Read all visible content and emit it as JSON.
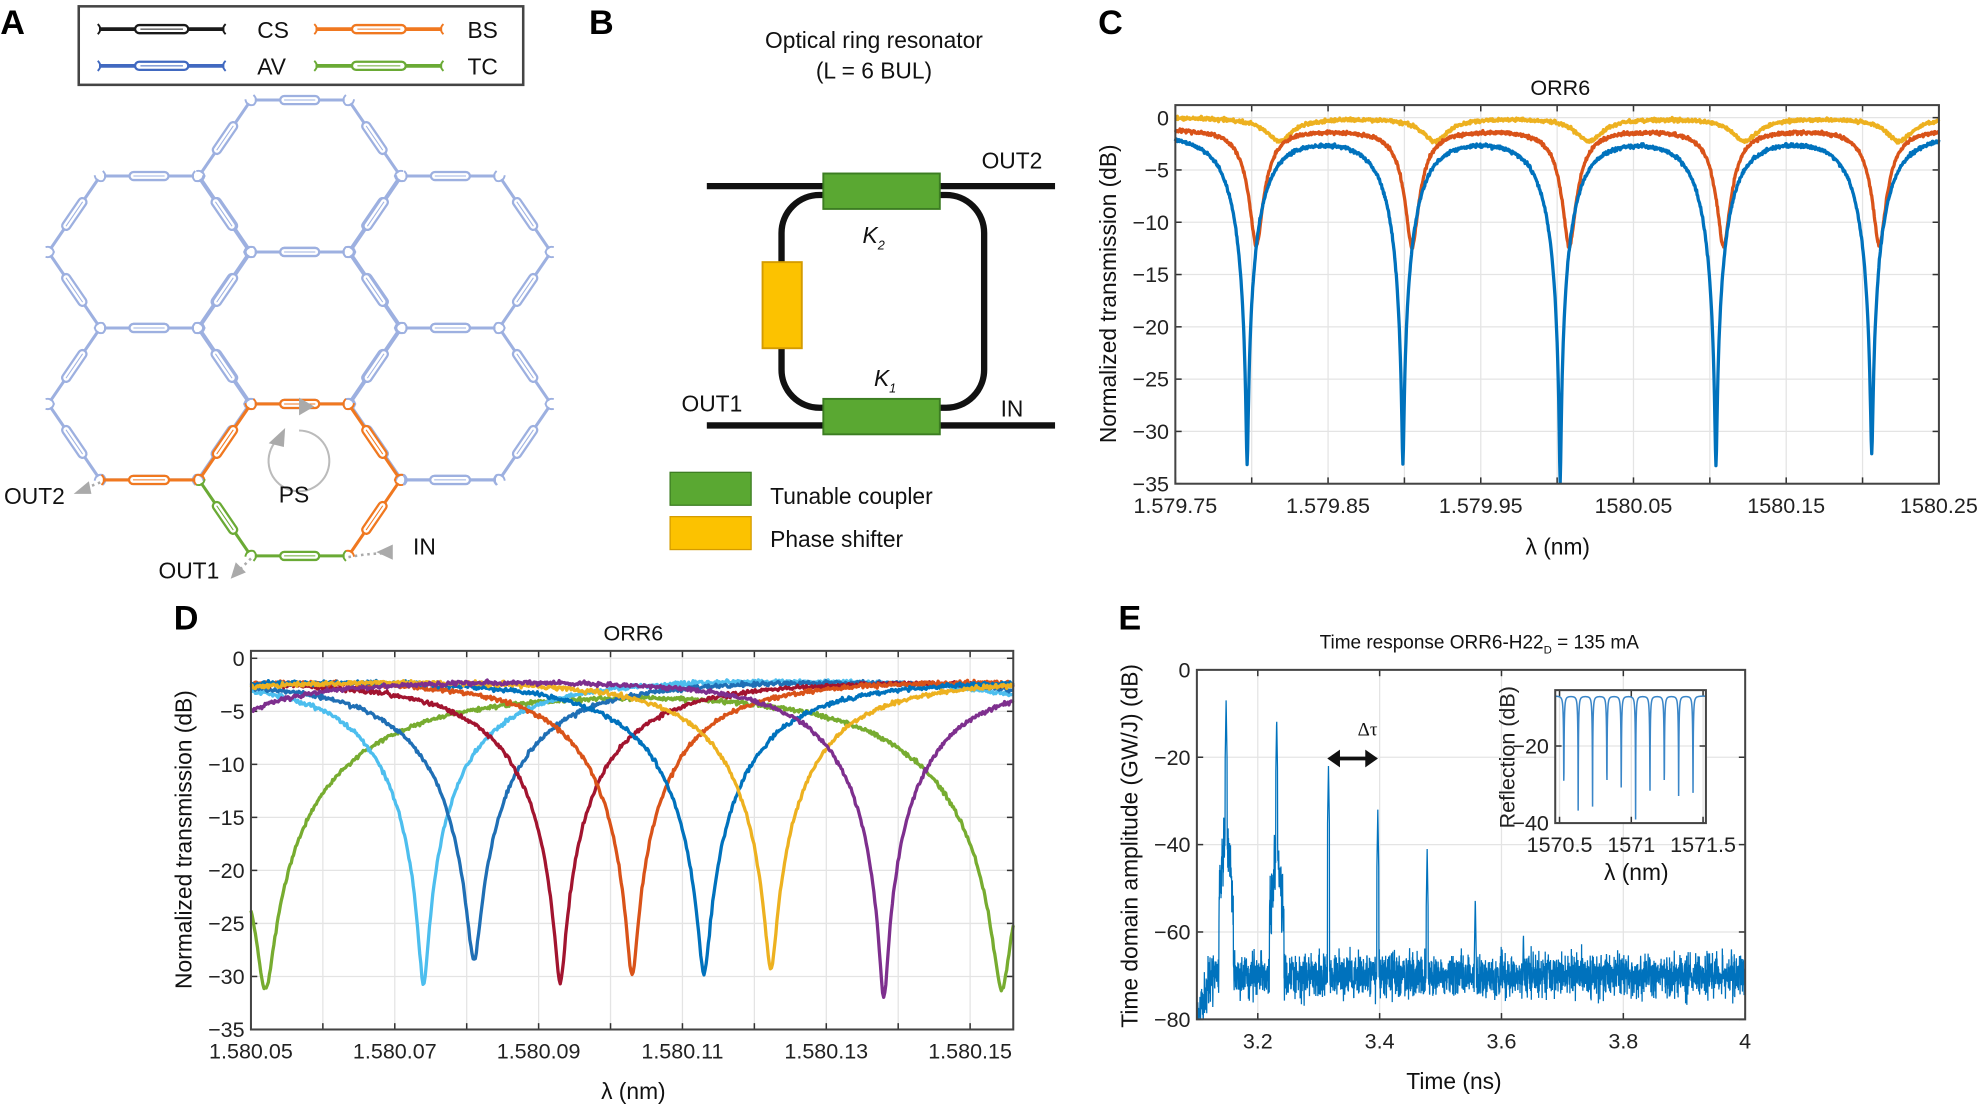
{
  "panel_labels": {
    "a": "A",
    "b": "B",
    "c": "C",
    "d": "D",
    "e": "E"
  },
  "panel_a": {
    "legend": [
      {
        "label": "CS",
        "color": "#1a1a1a"
      },
      {
        "label": "BS",
        "color": "#f07820"
      },
      {
        "label": "AV",
        "color": "#4169c0"
      },
      {
        "label": "TC",
        "color": "#6aaa35"
      }
    ],
    "lattice_color": "#9db0e0",
    "ports": {
      "out2": "OUT2",
      "out1": "OUT1",
      "in": "IN"
    },
    "ps_label": "PS"
  },
  "panel_b": {
    "title_line1": "Optical ring resonator",
    "title_line2": "(L = 6 BUL)",
    "k2": "K",
    "k2_sub": "2",
    "k1": "K",
    "k1_sub": "1",
    "out2": "OUT2",
    "out1": "OUT1",
    "in": "IN",
    "legend": [
      {
        "label": "Tunable coupler",
        "color": "#5aa832"
      },
      {
        "label": "Phase shifter",
        "color": "#fcc200"
      }
    ]
  },
  "chart_data": [
    {
      "type": "line",
      "title": "ORR6",
      "xlabel": "λ (nm)",
      "ylabel": "Normalized transmission (dB)",
      "xlim": [
        1579.75,
        1580.25
      ],
      "ylim": [
        -35,
        1.2
      ],
      "xtick_values": [
        1579.75,
        1579.85,
        1579.95,
        1580.05,
        1580.15,
        1580.25
      ],
      "xtick_labels": [
        "1.579.75",
        "1.579.85",
        "1.579.95",
        "1580.05",
        "1580.15",
        "1580.25"
      ],
      "ytick_values": [
        0,
        -5,
        -10,
        -15,
        -20,
        -25,
        -30,
        -35
      ],
      "ytick_labels": [
        "0",
        "−5",
        "−10",
        "−15",
        "−20",
        "−25",
        "−30",
        "−35"
      ],
      "grid": true,
      "series": [
        {
          "color": "#edb120",
          "baseline_db": 0,
          "half_width_nm": 0.012,
          "dips": [
            {
              "lambda": 1579.818,
              "depth_db": -2.2
            },
            {
              "lambda": 1579.92,
              "depth_db": -2.2
            },
            {
              "lambda": 1580.021,
              "depth_db": -2.2
            },
            {
              "lambda": 1580.123,
              "depth_db": -2.2
            },
            {
              "lambda": 1580.224,
              "depth_db": -2.2
            }
          ]
        },
        {
          "color": "#d95319",
          "baseline_db": -1.0,
          "half_width_nm": 0.0115,
          "dips": [
            {
              "lambda": 1579.803,
              "depth_db": -12.2
            },
            {
              "lambda": 1579.905,
              "depth_db": -12.3
            },
            {
              "lambda": 1580.008,
              "depth_db": -12.2
            },
            {
              "lambda": 1580.109,
              "depth_db": -12.2
            },
            {
              "lambda": 1580.211,
              "depth_db": -12.1
            }
          ]
        },
        {
          "color": "#0072bd",
          "baseline_db": -1.3,
          "half_width_nm": 0.02,
          "dips": [
            {
              "lambda": 1579.797,
              "depth_db": -33
            },
            {
              "lambda": 1579.899,
              "depth_db": -32.8
            },
            {
              "lambda": 1580.002,
              "depth_db": -34.3
            },
            {
              "lambda": 1580.104,
              "depth_db": -32.9
            },
            {
              "lambda": 1580.206,
              "depth_db": -31.9
            }
          ]
        }
      ]
    },
    {
      "type": "line",
      "title": "ORR6",
      "xlabel": "λ (nm)",
      "ylabel": "Normalized transmission (dB)",
      "xlim": [
        1580.05,
        1580.156
      ],
      "ylim": [
        -35,
        0.7
      ],
      "xtick_values": [
        1580.05,
        1580.07,
        1580.09,
        1580.11,
        1580.13,
        1580.15
      ],
      "xtick_labels": [
        "1.580.05",
        "1.580.07",
        "1.580.09",
        "1.580.11",
        "1.580.13",
        "1.580.15"
      ],
      "ytick_values": [
        0,
        -5,
        -10,
        -15,
        -20,
        -25,
        -30,
        -35
      ],
      "ytick_labels": [
        "0",
        "−5",
        "−10",
        "−15",
        "−20",
        "−25",
        "−30",
        "−35"
      ],
      "grid": true,
      "fsr_nm": 0.1024,
      "series": [
        {
          "color": "#77ac30",
          "baseline_db": -1.5,
          "half_width_nm": 0.026,
          "dips": [
            {
              "lambda": 1580.052,
              "depth_db": -30.5
            }
          ]
        },
        {
          "color": "#4dbeee",
          "baseline_db": -1.4,
          "half_width_nm": 0.015,
          "dips": [
            {
              "lambda": 1580.074,
              "depth_db": -30.5
            }
          ]
        },
        {
          "color": "#1f6fb5",
          "baseline_db": -1.4,
          "half_width_nm": 0.016,
          "dips": [
            {
              "lambda": 1580.081,
              "depth_db": -28.2
            }
          ]
        },
        {
          "color": "#a2142f",
          "baseline_db": -1.5,
          "half_width_nm": 0.016,
          "dips": [
            {
              "lambda": 1580.093,
              "depth_db": -30.4
            }
          ]
        },
        {
          "color": "#d95319",
          "baseline_db": -1.5,
          "half_width_nm": 0.015,
          "dips": [
            {
              "lambda": 1580.103,
              "depth_db": -29.6
            }
          ]
        },
        {
          "color": "#0072bd",
          "baseline_db": -1.4,
          "half_width_nm": 0.016,
          "dips": [
            {
              "lambda": 1580.113,
              "depth_db": -29.4
            }
          ]
        },
        {
          "color": "#edb120",
          "baseline_db": -1.5,
          "half_width_nm": 0.015,
          "dips": [
            {
              "lambda": 1580.1223,
              "depth_db": -29.1
            }
          ]
        },
        {
          "color": "#7e2f8e",
          "baseline_db": -1.5,
          "half_width_nm": 0.015,
          "dips": [
            {
              "lambda": 1580.138,
              "depth_db": -31.9
            }
          ]
        }
      ]
    },
    {
      "type": "line",
      "title": "Time response ORR6-H22",
      "title_sub": "D",
      "title_suffix": " = 135 mA",
      "xlabel": "Time (ns)",
      "ylabel": "Time domain amplitude (GW/J) (dB)",
      "xlim": [
        3.1,
        4
      ],
      "ylim": [
        -80,
        0
      ],
      "xtick_values": [
        3.2,
        3.4,
        3.6,
        3.8,
        4
      ],
      "xtick_labels": [
        "3.2",
        "3.4",
        "3.6",
        "3.8",
        "4"
      ],
      "ytick_values": [
        0,
        -20,
        -40,
        -60,
        -80
      ],
      "ytick_labels": [
        "0",
        "−20",
        "−40",
        "−60",
        "−80"
      ],
      "grid": true,
      "color": "#0072bd",
      "noise_floor_db": -70,
      "peaks": [
        {
          "time": 3.148,
          "amplitude_db": -7
        },
        {
          "time": 3.231,
          "amplitude_db": -11
        },
        {
          "time": 3.316,
          "amplitude_db": -22
        },
        {
          "time": 3.397,
          "amplitude_db": -32
        },
        {
          "time": 3.478,
          "amplitude_db": -41
        },
        {
          "time": 3.557,
          "amplitude_db": -52
        },
        {
          "time": 3.636,
          "amplitude_db": -60
        }
      ],
      "annotation": "Δτ"
    },
    {
      "type": "line",
      "inset_of": "Time response ORR6-H22",
      "xlabel": "λ (nm)",
      "ylabel": "Reflection (dB)",
      "xlim": [
        1570.47,
        1571.52
      ],
      "ylim": [
        -40,
        -5.5
      ],
      "xtick_values": [
        1570.5,
        1571,
        1571.5
      ],
      "xtick_labels": [
        "1570.5",
        "1571",
        "1571.5"
      ],
      "ytick_values": [
        -20,
        -40
      ],
      "ytick_labels": [
        "−20",
        "−40"
      ],
      "grid": true,
      "color": "#3a86c8",
      "baseline_db": -7,
      "half_width_nm": 0.007,
      "dips": [
        {
          "lambda": 1570.53,
          "depth_db": -36
        },
        {
          "lambda": 1570.63,
          "depth_db": -40
        },
        {
          "lambda": 1570.73,
          "depth_db": -38
        },
        {
          "lambda": 1570.83,
          "depth_db": -35
        },
        {
          "lambda": 1570.93,
          "depth_db": -34
        },
        {
          "lambda": 1571.03,
          "depth_db": -39
        },
        {
          "lambda": 1571.13,
          "depth_db": -36
        },
        {
          "lambda": 1571.23,
          "depth_db": -35
        },
        {
          "lambda": 1571.33,
          "depth_db": -34
        },
        {
          "lambda": 1571.43,
          "depth_db": -33
        }
      ]
    }
  ]
}
